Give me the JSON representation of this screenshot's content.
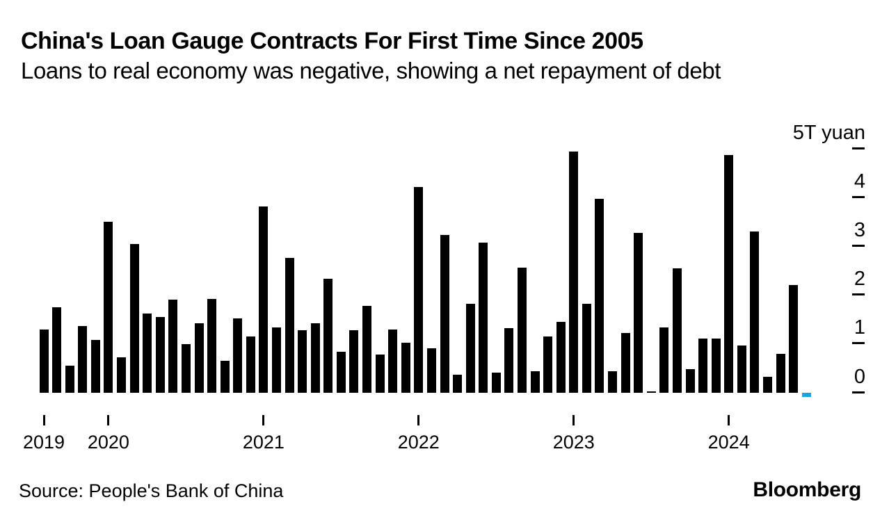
{
  "chart_data": {
    "type": "bar",
    "title": "China's Loan Gauge Contracts For First Time Since 2005",
    "subtitle": "Loans to real economy was negative, showing a net repayment of debt",
    "unit": "trillion yuan",
    "x": [
      "Aug 2019",
      "Sep 2019",
      "Oct 2019",
      "Nov 2019",
      "Dec 2019",
      "Jan 2020",
      "Feb 2020",
      "Mar 2020",
      "Apr 2020",
      "May 2020",
      "Jun 2020",
      "Jul 2020",
      "Aug 2020",
      "Sep 2020",
      "Oct 2020",
      "Nov 2020",
      "Dec 2020",
      "Jan 2021",
      "Feb 2021",
      "Mar 2021",
      "Apr 2021",
      "May 2021",
      "Jun 2021",
      "Jul 2021",
      "Aug 2021",
      "Sep 2021",
      "Oct 2021",
      "Nov 2021",
      "Dec 2021",
      "Jan 2022",
      "Feb 2022",
      "Mar 2022",
      "Apr 2022",
      "May 2022",
      "Jun 2022",
      "Jul 2022",
      "Aug 2022",
      "Sep 2022",
      "Oct 2022",
      "Nov 2022",
      "Dec 2022",
      "Jan 2023",
      "Feb 2023",
      "Mar 2023",
      "Apr 2023",
      "May 2023",
      "Jun 2023",
      "Jul 2023",
      "Aug 2023",
      "Sep 2023",
      "Oct 2023",
      "Nov 2023",
      "Dec 2023",
      "Jan 2024",
      "Feb 2024",
      "Mar 2024",
      "Apr 2024",
      "May 2024",
      "Jun 2024",
      "Jul 2024"
    ],
    "values": [
      1.3,
      1.75,
      0.55,
      1.37,
      1.08,
      3.5,
      0.72,
      3.05,
      1.62,
      1.55,
      1.91,
      1.0,
      1.43,
      1.93,
      0.66,
      1.53,
      1.15,
      3.82,
      1.34,
      2.76,
      1.28,
      1.43,
      2.33,
      0.84,
      1.28,
      1.78,
      0.78,
      1.3,
      1.03,
      4.21,
      0.91,
      3.24,
      0.37,
      1.83,
      3.07,
      0.41,
      1.33,
      2.57,
      0.44,
      1.15,
      1.45,
      4.94,
      1.83,
      3.98,
      0.44,
      1.23,
      3.27,
      0.03,
      1.34,
      2.55,
      0.49,
      1.11,
      1.11,
      4.87,
      0.97,
      3.3,
      0.33,
      0.8,
      2.21,
      -0.08
    ],
    "x_axis": {
      "tick_labels": [
        "2019",
        "2020",
        "2021",
        "2022",
        "2023",
        "2024"
      ],
      "tick_month_index": [
        0,
        5,
        17,
        29,
        41,
        53
      ]
    },
    "y_axis": {
      "range": [
        -0.2,
        5
      ],
      "grid": false,
      "ticks": [
        {
          "value": 0,
          "label": "0"
        },
        {
          "value": 1,
          "label": "1"
        },
        {
          "value": 2,
          "label": "2"
        },
        {
          "value": 3,
          "label": "3"
        },
        {
          "value": 4,
          "label": "4"
        },
        {
          "value": 5,
          "label": "5T yuan"
        }
      ]
    },
    "legend": null,
    "colors": {
      "bar": "#000000",
      "negative_highlight": "#18a3e2"
    }
  },
  "footer": {
    "source": "Source: People's Bank of China",
    "brand": "Bloomberg"
  }
}
